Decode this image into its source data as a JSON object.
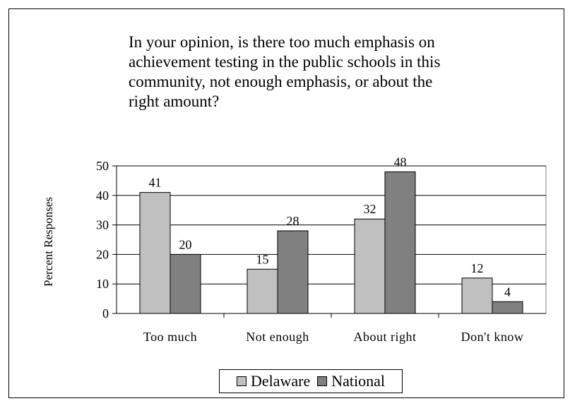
{
  "chart_data": {
    "type": "bar",
    "title": [
      "In your opinion, is there too much emphasis on",
      "achievement testing in the public schools in this",
      "community, not enough emphasis, or about the",
      "right amount?"
    ],
    "ylabel": "Percent Responses",
    "xlabel": "",
    "categories": [
      "Too much",
      "Not enough",
      "About right",
      "Don't know"
    ],
    "series": [
      {
        "name": "Delaware",
        "values": [
          41,
          15,
          32,
          12
        ],
        "color": "#c0c0c0"
      },
      {
        "name": "National",
        "values": [
          20,
          28,
          48,
          4
        ],
        "color": "#808080"
      }
    ],
    "ylim": [
      0,
      50
    ],
    "yticks": [
      0,
      10,
      20,
      30,
      40,
      50
    ],
    "grid": true,
    "legend_position": "bottom"
  }
}
